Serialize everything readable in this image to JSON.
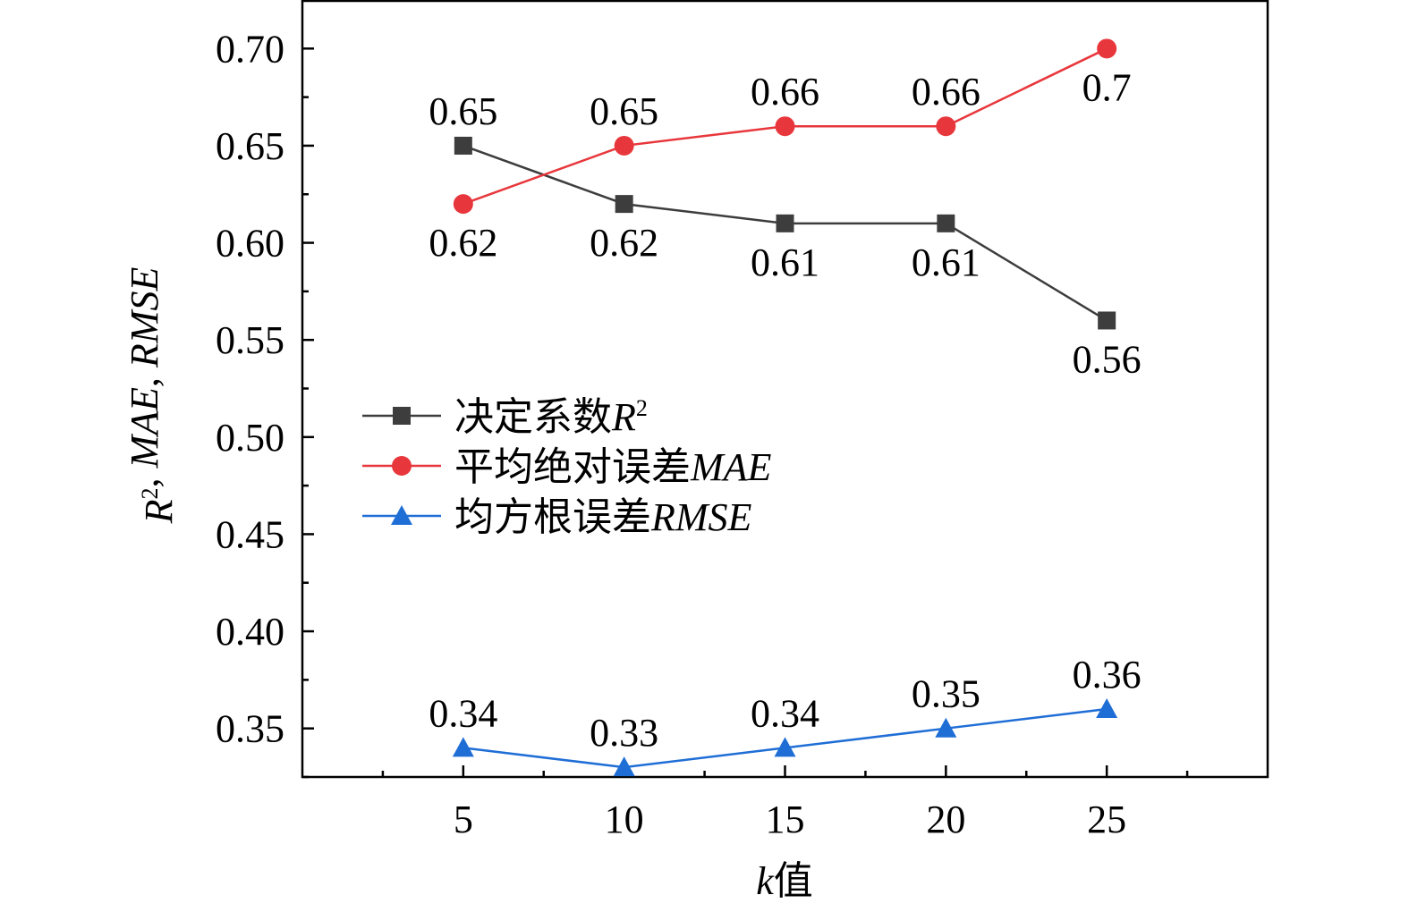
{
  "chart_data": {
    "type": "line",
    "x_label_prefix": "k",
    "x_label_suffix": "值",
    "y_label_parts": [
      {
        "text": "R",
        "italic": true
      },
      {
        "text": "2",
        "sup": true
      },
      {
        "text": ", ",
        "italic": false
      },
      {
        "text": "MAE",
        "italic": true
      },
      {
        "text": ", ",
        "italic": false
      },
      {
        "text": "RMSE",
        "italic": true
      }
    ],
    "x": [
      5,
      10,
      15,
      20,
      25
    ],
    "x_ticks": [
      "5",
      "10",
      "15",
      "20",
      "25"
    ],
    "xlim": [
      0,
      30
    ],
    "ylim": [
      0.325,
      0.725
    ],
    "y_ticks": [
      "0.35",
      "0.40",
      "0.45",
      "0.50",
      "0.55",
      "0.60",
      "0.65",
      "0.70"
    ],
    "grid": false,
    "legend_position": "center-left",
    "series": [
      {
        "name_prefix": "决定系数",
        "name_italic": "R",
        "name_sup": "2",
        "color": "#3d3d3d",
        "marker": "square",
        "values": [
          0.65,
          0.62,
          0.61,
          0.61,
          0.56
        ],
        "labels": [
          "0.65",
          "0.62",
          "0.61",
          "0.61",
          "0.56"
        ],
        "label_pos": [
          "above",
          "below",
          "below",
          "below",
          "below"
        ]
      },
      {
        "name_prefix": "平均绝对误差",
        "name_italic": "MAE",
        "name_sup": "",
        "color": "#e8373c",
        "marker": "circle",
        "values": [
          0.62,
          0.65,
          0.66,
          0.66,
          0.7
        ],
        "labels": [
          "0.62",
          "0.65",
          "0.66",
          "0.66",
          "0.7"
        ],
        "label_pos": [
          "below",
          "above",
          "above",
          "above",
          "below"
        ]
      },
      {
        "name_prefix": "均方根误差",
        "name_italic": "RMSE",
        "name_sup": "",
        "color": "#1f6ed6",
        "marker": "triangle",
        "values": [
          0.34,
          0.33,
          0.34,
          0.35,
          0.36
        ],
        "labels": [
          "0.34",
          "0.33",
          "0.34",
          "0.35",
          "0.36"
        ],
        "label_pos": [
          "above",
          "above",
          "above",
          "above",
          "above"
        ]
      }
    ]
  }
}
